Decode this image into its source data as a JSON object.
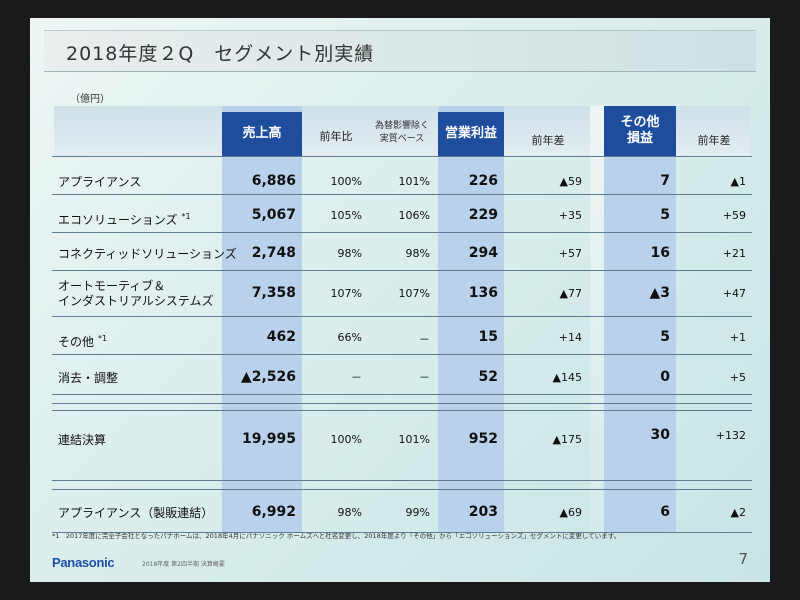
{
  "title": "2018年度２Q　セグメント別実績",
  "unit": "（億円）",
  "headers": {
    "sales": "売上高",
    "yoy_ratio": "前年比",
    "fx_excluded_line1": "為替影響除く",
    "fx_excluded_line2": "実質ベース",
    "operating_profit": "営業利益",
    "yoy_diff": "前年差",
    "other_line1": "その他",
    "other_line2": "損益",
    "other_yoy_diff": "前年差"
  },
  "rows": [
    {
      "label": "アプライアンス",
      "sup": "",
      "sales": "6,886",
      "ratio": "100%",
      "real": "101%",
      "op": "226",
      "op_diff": "▲59",
      "other": "7",
      "other_diff": "▲1"
    },
    {
      "label": "エコソリューションズ",
      "sup": "*1",
      "sales": "5,067",
      "ratio": "105%",
      "real": "106%",
      "op": "229",
      "op_diff": "+35",
      "other": "5",
      "other_diff": "+59"
    },
    {
      "label": "コネクティッドソリューションズ",
      "sup": "",
      "sales": "2,748",
      "ratio": "98%",
      "real": "98%",
      "op": "294",
      "op_diff": "+57",
      "other": "16",
      "other_diff": "+21"
    },
    {
      "label": "オートモーティブ＆",
      "label2": "インダストリアルシステムズ",
      "sup": "",
      "sales": "7,358",
      "ratio": "107%",
      "real": "107%",
      "op": "136",
      "op_diff": "▲77",
      "other": "▲3",
      "other_diff": "+47"
    },
    {
      "label": "その他",
      "sup": "*1",
      "sales": "462",
      "ratio": "66%",
      "real": "－",
      "op": "15",
      "op_diff": "+14",
      "other": "5",
      "other_diff": "+1"
    },
    {
      "label": "消去・調整",
      "sup": "",
      "sales": "▲2,526",
      "ratio": "－",
      "real": "－",
      "op": "52",
      "op_diff": "▲145",
      "other": "0",
      "other_diff": "+5"
    }
  ],
  "total": {
    "label": "連結決算",
    "sales": "19,995",
    "ratio": "100%",
    "real": "101%",
    "op": "952",
    "op_diff": "▲175",
    "other": "30",
    "other_diff": "+132"
  },
  "sub": {
    "label": "アプライアンス（製販連結）",
    "sales": "6,992",
    "ratio": "98%",
    "real": "99%",
    "op": "203",
    "op_diff": "▲69",
    "other": "6",
    "other_diff": "▲2"
  },
  "footnote": "*1　2017年度に完全子会社となったパナホームは、2018年4月にパナソニック ホームズへと社名変更し、2018年度より「その他」から「エコソリューションズ」セグメントに変更しています。",
  "logo": "Panasonic",
  "meta": "2018年度 第2四半期 決算概要",
  "page_number": "7",
  "colors": {
    "accent": "#1f4d9e",
    "column_highlight": "#b9d1ea"
  }
}
